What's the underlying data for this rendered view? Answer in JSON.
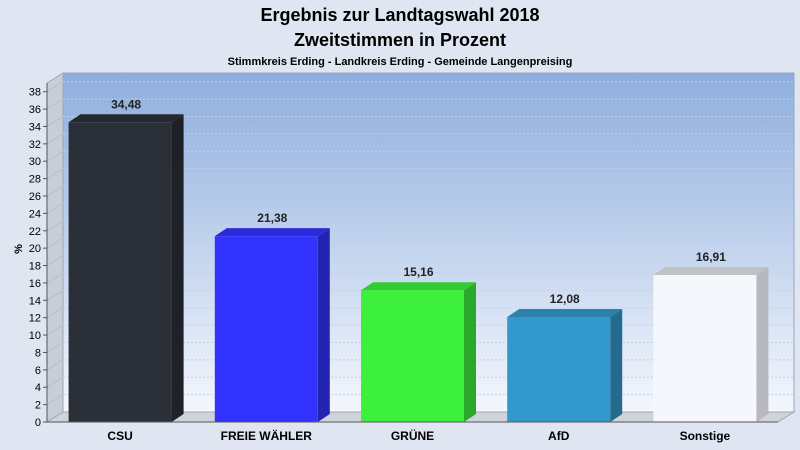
{
  "chart_data": {
    "type": "bar",
    "title": "Ergebnis zur Landtagswahl 2018",
    "title2": "Zweitstimmen in Prozent",
    "subtitle": "Stimmkreis Erding - Landkreis Erding - Gemeinde Langenpreising",
    "ylabel": "%",
    "xlabel": "",
    "ylim": [
      0,
      39
    ],
    "yticks": [
      0,
      2,
      4,
      6,
      8,
      10,
      12,
      14,
      16,
      18,
      20,
      22,
      24,
      26,
      28,
      30,
      32,
      34,
      36,
      38
    ],
    "categories": [
      "CSU",
      "FREIE WÄHLER",
      "GRÜNE",
      "AfD",
      "Sonstige"
    ],
    "values": [
      34.48,
      21.38,
      15.16,
      12.08,
      16.91
    ],
    "value_labels": [
      "34,48",
      "21,38",
      "15,16",
      "12,08",
      "16,91"
    ],
    "colors": [
      "#2b2f37",
      "#3333ff",
      "#3cf03c",
      "#3399cc",
      "#f5f7fd"
    ],
    "grid": true,
    "legend": "none"
  }
}
